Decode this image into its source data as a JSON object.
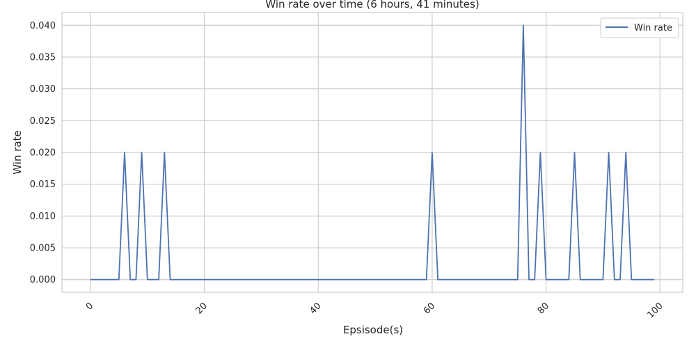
{
  "chart_data": {
    "type": "line",
    "title": "Win rate over time (6 hours, 41 minutes)",
    "xlabel": "Epsisode(s)",
    "ylabel": "Win rate",
    "xlim": [
      -5,
      104
    ],
    "ylim": [
      -0.002,
      0.042
    ],
    "xticks": [
      0,
      20,
      40,
      60,
      80,
      100
    ],
    "yticks": [
      0.0,
      0.005,
      0.01,
      0.015,
      0.02,
      0.025,
      0.03,
      0.035,
      0.04
    ],
    "ytick_labels": [
      "0.000",
      "0.005",
      "0.010",
      "0.015",
      "0.020",
      "0.025",
      "0.030",
      "0.035",
      "0.040"
    ],
    "xtick_labels": [
      "0",
      "20",
      "40",
      "60",
      "80",
      "100"
    ],
    "grid": true,
    "legend": "top-right",
    "color": "#4c72b0",
    "series": [
      {
        "name": "Win rate",
        "x": [
          0,
          1,
          2,
          3,
          4,
          5,
          6,
          7,
          8,
          9,
          10,
          11,
          12,
          13,
          14,
          15,
          16,
          17,
          18,
          19,
          20,
          21,
          22,
          23,
          24,
          25,
          26,
          27,
          28,
          29,
          30,
          31,
          32,
          33,
          34,
          35,
          36,
          37,
          38,
          39,
          40,
          41,
          42,
          43,
          44,
          45,
          46,
          47,
          48,
          49,
          50,
          51,
          52,
          53,
          54,
          55,
          56,
          57,
          58,
          59,
          60,
          61,
          62,
          63,
          64,
          65,
          66,
          67,
          68,
          69,
          70,
          71,
          72,
          73,
          74,
          75,
          76,
          77,
          78,
          79,
          80,
          81,
          82,
          83,
          84,
          85,
          86,
          87,
          88,
          89,
          90,
          91,
          92,
          93,
          94,
          95,
          96,
          97,
          98,
          99
        ],
        "values": [
          0,
          0,
          0,
          0,
          0,
          0,
          0.02,
          0,
          0,
          0.02,
          0,
          0,
          0,
          0.02,
          0,
          0,
          0,
          0,
          0,
          0,
          0,
          0,
          0,
          0,
          0,
          0,
          0,
          0,
          0,
          0,
          0,
          0,
          0,
          0,
          0,
          0,
          0,
          0,
          0,
          0,
          0,
          0,
          0,
          0,
          0,
          0,
          0,
          0,
          0,
          0,
          0,
          0,
          0,
          0,
          0,
          0,
          0,
          0,
          0,
          0,
          0.02,
          0,
          0,
          0,
          0,
          0,
          0,
          0,
          0,
          0,
          0,
          0,
          0,
          0,
          0,
          0,
          0.04,
          0,
          0,
          0.02,
          0,
          0,
          0,
          0,
          0,
          0.02,
          0,
          0,
          0,
          0,
          0,
          0.02,
          0,
          0,
          0.02,
          0,
          0,
          0,
          0,
          0
        ]
      }
    ]
  }
}
